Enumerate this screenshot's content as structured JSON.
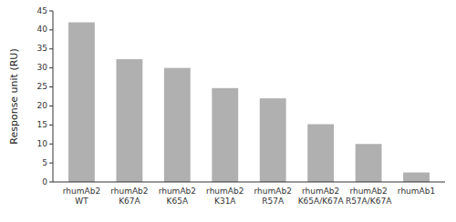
{
  "chart_data": {
    "type": "bar",
    "categories": [
      "rhumAb2\nWT",
      "rhumAb2\nK67A",
      "rhumAb2\nK65A",
      "rhumAb2\nK31A",
      "rhumAb2\nR57A",
      "rhumAb2\nK65A/K67A",
      "rhumAb2\nR57A/K67A",
      "rhumAb1"
    ],
    "values": [
      42.0,
      32.3,
      30.0,
      24.7,
      22.0,
      15.2,
      10.0,
      2.5
    ],
    "color": "#b0b0b0",
    "ylabel": "Response unit (RU)",
    "ylim": [
      0,
      45
    ],
    "yticks": [
      0,
      5,
      10,
      15,
      20,
      25,
      30,
      35,
      40,
      45
    ],
    "grid": false
  }
}
